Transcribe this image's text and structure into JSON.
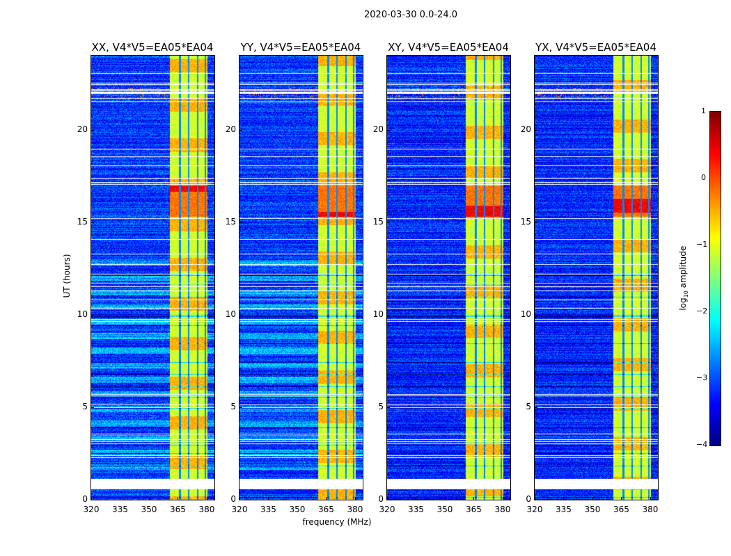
{
  "chart_data": {
    "type": "heatmap",
    "title": "2020-03-30 0.0-24.0",
    "xlabel": "frequency (MHz)",
    "ylabel": "UT (hours)",
    "xlim": [
      320,
      384
    ],
    "ylim": [
      0,
      24
    ],
    "xticks": [
      "320",
      "335",
      "350",
      "365",
      "380"
    ],
    "xtick_values": [
      320,
      335,
      350,
      365,
      380
    ],
    "yticks": [
      "0",
      "5",
      "10",
      "15",
      "20"
    ],
    "ytick_values": [
      0,
      5,
      10,
      15,
      20
    ],
    "panels": [
      {
        "title": "XX, V4*V5=EA05*EA04"
      },
      {
        "title": "YY, V4*V5=EA05*EA04"
      },
      {
        "title": "XY, V4*V5=EA05*EA04"
      },
      {
        "title": "YX, V4*V5=EA05*EA04"
      }
    ],
    "colorbar": {
      "label": "log10 amplitude",
      "label_main": "log",
      "label_sub": "10",
      "label_rest": " amplitude",
      "range": [
        -4,
        1
      ],
      "ticks": [
        "1",
        "0",
        "−1",
        "−2",
        "−3",
        "−4"
      ],
      "tick_values": [
        1,
        0,
        -1,
        -2,
        -3,
        -4
      ],
      "colormap": "jet"
    }
  }
}
